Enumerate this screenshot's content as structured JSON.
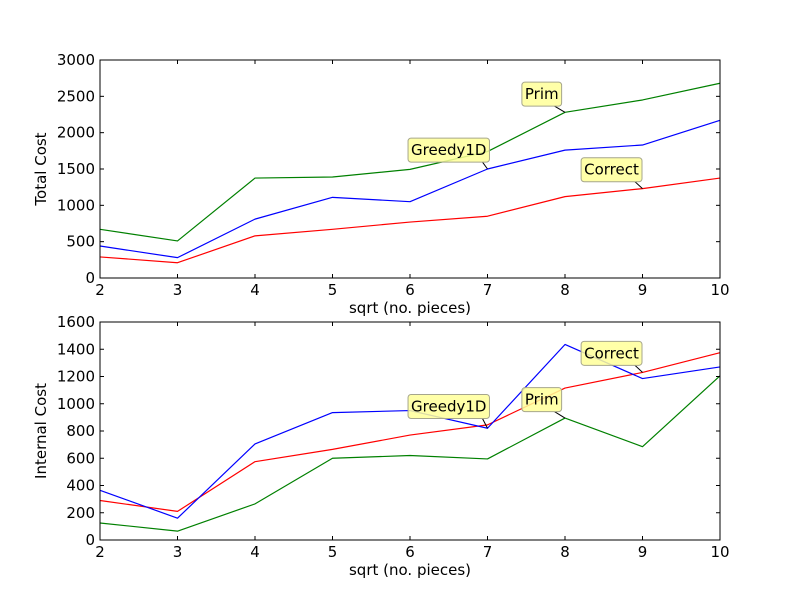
{
  "colors": {
    "background": "#ffffff",
    "correct": "#ff0000",
    "greedy1d": "#0000ff",
    "prim": "#008000",
    "annotation_fill": "#ffff99",
    "annotation_edge": "#a6a68c"
  },
  "chart_data": [
    {
      "type": "line",
      "title": "",
      "xlabel": "sqrt (no. pieces)",
      "ylabel": "Total Cost",
      "xlim": [
        2,
        10
      ],
      "ylim": [
        0,
        3000
      ],
      "xticks": [
        2,
        3,
        4,
        5,
        6,
        7,
        8,
        9,
        10
      ],
      "yticks": [
        0,
        500,
        1000,
        1500,
        2000,
        2500,
        3000
      ],
      "grid": false,
      "x": [
        2,
        3,
        4,
        5,
        6,
        7,
        8,
        9,
        10
      ],
      "series": [
        {
          "name": "Correct",
          "color": "#ff0000",
          "values": [
            290,
            210,
            580,
            670,
            770,
            850,
            1120,
            1230,
            1375
          ]
        },
        {
          "name": "Greedy1D",
          "color": "#0000ff",
          "values": [
            440,
            280,
            810,
            1110,
            1050,
            1500,
            1760,
            1830,
            2170
          ]
        },
        {
          "name": "Prim",
          "color": "#008000",
          "values": [
            670,
            510,
            1375,
            1390,
            1495,
            1740,
            2280,
            2450,
            2680
          ]
        }
      ],
      "annotations": [
        {
          "text": "Prim",
          "series": "Prim",
          "x": 8,
          "label_x": 7.7,
          "label_y": 2530
        },
        {
          "text": "Greedy1D",
          "series": "Greedy1D",
          "x": 7,
          "label_x": 6.5,
          "label_y": 1760
        },
        {
          "text": "Correct",
          "series": "Correct",
          "x": 9,
          "label_x": 8.6,
          "label_y": 1490
        }
      ]
    },
    {
      "type": "line",
      "title": "",
      "xlabel": "sqrt (no. pieces)",
      "ylabel": "Internal Cost",
      "xlim": [
        2,
        10
      ],
      "ylim": [
        0,
        1600
      ],
      "xticks": [
        2,
        3,
        4,
        5,
        6,
        7,
        8,
        9,
        10
      ],
      "yticks": [
        0,
        200,
        400,
        600,
        800,
        1000,
        1200,
        1400,
        1600
      ],
      "grid": false,
      "x": [
        2,
        3,
        4,
        5,
        6,
        7,
        8,
        9,
        10
      ],
      "series": [
        {
          "name": "Correct",
          "color": "#ff0000",
          "values": [
            290,
            210,
            575,
            665,
            770,
            845,
            1115,
            1230,
            1375
          ]
        },
        {
          "name": "Greedy1D",
          "color": "#0000ff",
          "values": [
            365,
            160,
            705,
            935,
            950,
            820,
            1435,
            1185,
            1270
          ]
        },
        {
          "name": "Prim",
          "color": "#008000",
          "values": [
            125,
            65,
            265,
            600,
            620,
            595,
            895,
            685,
            1205
          ]
        }
      ],
      "annotations": [
        {
          "text": "Correct",
          "series": "Correct",
          "x": 9,
          "label_x": 8.6,
          "label_y": 1370
        },
        {
          "text": "Greedy1D",
          "series": "Greedy1D",
          "x": 7,
          "label_x": 6.5,
          "label_y": 980
        },
        {
          "text": "Prim",
          "series": "Prim",
          "x": 8,
          "label_x": 7.7,
          "label_y": 1030
        }
      ]
    }
  ]
}
